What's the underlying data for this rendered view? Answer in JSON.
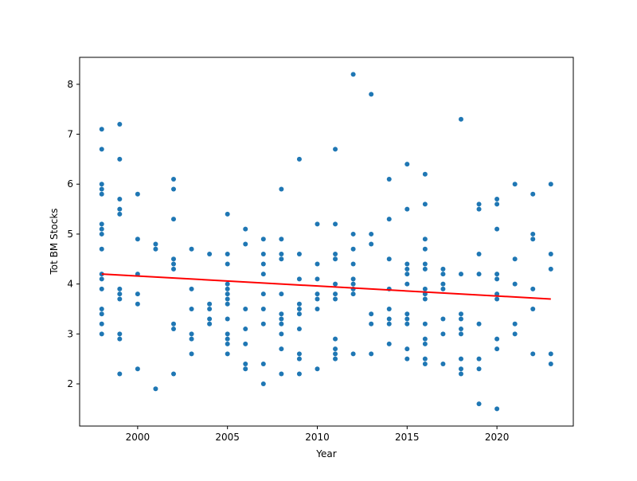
{
  "chart_data": {
    "type": "scatter",
    "xlabel": "Year",
    "ylabel": "Tot BM Stocks",
    "xlim": [
      1996.77,
      2024.25
    ],
    "ylim": [
      1.155,
      8.54
    ],
    "xticks": [
      2000,
      2005,
      2010,
      2015,
      2020
    ],
    "yticks": [
      2,
      3,
      4,
      5,
      6,
      7,
      8
    ],
    "series": [
      {
        "color": "#1f77b4",
        "x": [
          1998,
          1998,
          1998,
          1998,
          1998,
          1998,
          1998,
          1998,
          1998,
          1998,
          1998,
          1998,
          1998,
          1998,
          1998,
          1998,
          1999,
          1999,
          1999,
          1999,
          1999,
          1999,
          1999,
          1999,
          1999,
          1999,
          1999,
          2000,
          2000,
          2000,
          2000,
          2000,
          2000,
          2001,
          2001,
          2001,
          2002,
          2002,
          2002,
          2002,
          2002,
          2002,
          2002,
          2002,
          2002,
          2003,
          2003,
          2003,
          2003,
          2003,
          2003,
          2004,
          2004,
          2004,
          2004,
          2004,
          2005,
          2005,
          2005,
          2005,
          2005,
          2005,
          2005,
          2005,
          2005,
          2005,
          2005,
          2005,
          2005,
          2006,
          2006,
          2006,
          2006,
          2006,
          2006,
          2006,
          2007,
          2007,
          2007,
          2007,
          2007,
          2007,
          2007,
          2007,
          2007,
          2008,
          2008,
          2008,
          2008,
          2008,
          2008,
          2008,
          2008,
          2008,
          2008,
          2008,
          2009,
          2009,
          2009,
          2009,
          2009,
          2009,
          2009,
          2009,
          2009,
          2009,
          2010,
          2010,
          2010,
          2010,
          2010,
          2010,
          2010,
          2011,
          2011,
          2011,
          2011,
          2011,
          2011,
          2011,
          2011,
          2011,
          2011,
          2011,
          2012,
          2012,
          2012,
          2012,
          2012,
          2012,
          2012,
          2012,
          2012,
          2013,
          2013,
          2013,
          2013,
          2013,
          2013,
          2014,
          2014,
          2014,
          2014,
          2014,
          2014,
          2014,
          2014,
          2015,
          2015,
          2015,
          2015,
          2015,
          2015,
          2015,
          2015,
          2015,
          2015,
          2015,
          2016,
          2016,
          2016,
          2016,
          2016,
          2016,
          2016,
          2016,
          2016,
          2016,
          2016,
          2016,
          2016,
          2016,
          2017,
          2017,
          2017,
          2017,
          2017,
          2017,
          2017,
          2018,
          2018,
          2018,
          2018,
          2018,
          2018,
          2018,
          2018,
          2018,
          2019,
          2019,
          2019,
          2019,
          2019,
          2019,
          2019,
          2019,
          2020,
          2020,
          2020,
          2020,
          2020,
          2020,
          2020,
          2020,
          2020,
          2020,
          2021,
          2021,
          2021,
          2021,
          2021,
          2022,
          2022,
          2022,
          2022,
          2022,
          2022,
          2023,
          2023,
          2023,
          2023,
          2023
        ],
        "values": [
          7.1,
          6.7,
          6.0,
          5.9,
          5.8,
          5.2,
          5.1,
          5.0,
          4.7,
          4.2,
          4.1,
          3.9,
          3.5,
          3.4,
          3.2,
          3.0,
          7.2,
          6.5,
          5.7,
          5.5,
          5.4,
          3.9,
          3.8,
          3.7,
          3.0,
          2.9,
          2.2,
          5.8,
          4.9,
          4.2,
          3.8,
          3.6,
          2.3,
          4.8,
          4.7,
          1.9,
          6.1,
          5.9,
          5.3,
          4.5,
          4.4,
          4.3,
          3.2,
          3.1,
          2.2,
          4.7,
          3.9,
          3.5,
          3.0,
          2.9,
          2.6,
          4.6,
          3.6,
          3.5,
          3.3,
          3.2,
          5.4,
          4.6,
          4.4,
          4.0,
          3.9,
          3.8,
          3.7,
          3.6,
          3.3,
          3.0,
          2.9,
          2.8,
          2.6,
          5.1,
          4.8,
          3.5,
          3.1,
          2.8,
          2.4,
          2.3,
          4.9,
          4.6,
          4.4,
          4.2,
          3.8,
          3.5,
          3.2,
          2.4,
          2.0,
          5.9,
          4.9,
          4.6,
          4.5,
          3.8,
          3.4,
          3.3,
          3.2,
          3.0,
          2.7,
          2.2,
          6.5,
          4.6,
          4.1,
          3.6,
          3.5,
          3.4,
          3.1,
          2.6,
          2.5,
          2.2,
          5.2,
          4.4,
          4.1,
          3.8,
          3.7,
          3.5,
          2.3,
          6.7,
          5.2,
          4.6,
          4.5,
          4.0,
          3.8,
          3.7,
          2.9,
          2.7,
          2.6,
          2.5,
          8.2,
          5.0,
          4.7,
          4.4,
          4.1,
          4.0,
          3.9,
          3.8,
          2.6,
          7.8,
          5.0,
          4.8,
          3.4,
          3.2,
          2.6,
          6.1,
          5.3,
          4.5,
          3.9,
          3.5,
          3.3,
          3.2,
          2.8,
          6.4,
          5.5,
          4.4,
          4.3,
          4.2,
          4.0,
          3.4,
          3.3,
          3.2,
          2.7,
          2.5,
          6.2,
          5.6,
          4.9,
          4.7,
          4.4,
          4.3,
          3.9,
          3.8,
          3.7,
          3.2,
          2.9,
          2.8,
          2.5,
          2.4,
          4.3,
          4.2,
          4.0,
          3.9,
          3.3,
          3.0,
          2.4,
          7.3,
          4.2,
          3.4,
          3.3,
          3.1,
          3.0,
          2.5,
          2.3,
          2.2,
          5.6,
          5.5,
          4.6,
          4.2,
          3.2,
          2.5,
          2.3,
          1.6,
          5.7,
          5.6,
          5.1,
          4.2,
          4.1,
          3.8,
          3.7,
          2.9,
          2.7,
          1.5,
          6.0,
          4.5,
          4.0,
          3.2,
          3.0,
          5.8,
          5.0,
          4.9,
          3.9,
          3.5,
          2.6,
          6.0,
          4.6,
          4.3,
          2.6,
          2.4
        ]
      }
    ],
    "trend": {
      "x": [
        1998,
        2023
      ],
      "values": [
        4.2,
        3.7
      ],
      "color": "red"
    }
  }
}
